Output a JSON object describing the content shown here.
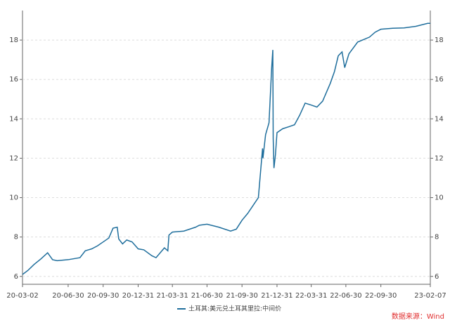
{
  "chart_data": {
    "type": "line",
    "x": [
      "20-03-02",
      "20-03-16",
      "20-04-01",
      "20-04-20",
      "20-05-07",
      "20-05-20",
      "20-06-01",
      "20-06-30",
      "20-07-31",
      "20-08-14",
      "20-08-31",
      "20-09-15",
      "20-09-30",
      "20-10-15",
      "20-10-26",
      "20-11-06",
      "20-11-10",
      "20-11-20",
      "20-12-01",
      "20-12-15",
      "20-12-31",
      "21-01-15",
      "21-02-05",
      "21-02-16",
      "21-03-10",
      "21-03-19",
      "21-03-22",
      "21-03-31",
      "21-04-30",
      "21-05-31",
      "21-06-10",
      "21-06-30",
      "21-07-31",
      "21-08-31",
      "21-09-15",
      "21-09-30",
      "21-10-15",
      "21-10-29",
      "21-11-12",
      "21-11-23",
      "21-11-24",
      "21-12-01",
      "21-12-10",
      "21-12-17",
      "21-12-20",
      "21-12-21",
      "21-12-23",
      "21-12-27",
      "21-12-31",
      "22-01-15",
      "22-01-31",
      "22-02-15",
      "22-03-01",
      "22-03-15",
      "22-03-31",
      "22-04-15",
      "22-04-30",
      "22-05-20",
      "22-05-31",
      "22-06-10",
      "22-06-20",
      "22-06-27",
      "22-07-08",
      "22-07-31",
      "22-08-31",
      "22-09-15",
      "22-09-30",
      "22-10-31",
      "22-11-30",
      "22-12-31",
      "23-01-31",
      "23-02-07"
    ],
    "series": [
      {
        "name": "土耳其:美元兑土耳其里拉:中间价",
        "color": "#1f6e9c",
        "values": [
          6.1,
          6.3,
          6.6,
          6.9,
          7.2,
          6.85,
          6.8,
          6.85,
          6.95,
          7.3,
          7.4,
          7.55,
          7.75,
          7.95,
          8.45,
          8.5,
          7.9,
          7.65,
          7.85,
          7.75,
          7.4,
          7.35,
          7.05,
          6.95,
          7.45,
          7.3,
          8.1,
          8.25,
          8.3,
          8.5,
          8.6,
          8.65,
          8.5,
          8.3,
          8.4,
          8.85,
          9.2,
          9.6,
          10.0,
          12.5,
          12.0,
          13.2,
          13.8,
          16.6,
          17.5,
          13.0,
          11.5,
          12.2,
          13.3,
          13.5,
          13.6,
          13.7,
          14.2,
          14.8,
          14.7,
          14.6,
          14.9,
          15.8,
          16.4,
          17.2,
          17.4,
          16.6,
          17.3,
          17.9,
          18.15,
          18.4,
          18.55,
          18.6,
          18.62,
          18.7,
          18.85,
          18.85
        ]
      }
    ],
    "xticks": [
      "20-03-02",
      "20-06-30",
      "20-09-30",
      "20-12-31",
      "21-03-31",
      "21-06-30",
      "21-09-30",
      "21-12-31",
      "22-03-31",
      "22-06-30",
      "22-09-30",
      "23-02-07"
    ],
    "ylim": [
      5.6,
      19.5
    ],
    "yticks": [
      6,
      8,
      10,
      12,
      14,
      16,
      18
    ],
    "y2lim": [
      5.6,
      19.5
    ],
    "y2ticks": [
      6,
      8,
      10,
      12,
      14,
      16,
      18
    ],
    "grid": true,
    "source": "数据来源：Wind"
  }
}
